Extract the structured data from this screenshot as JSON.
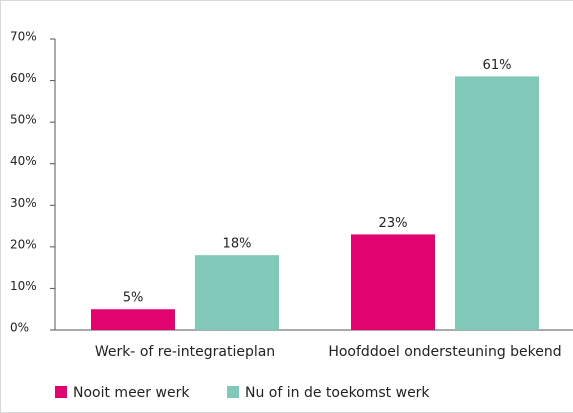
{
  "chart_data": {
    "type": "bar",
    "categories": [
      "Werk- of re-integratieplan",
      "Hoofddoel ondersteuning bekend"
    ],
    "series": [
      {
        "name": "Nooit meer werk",
        "color": "#e2046e",
        "values": [
          5,
          23
        ],
        "value_labels": [
          "5%",
          "23%"
        ]
      },
      {
        "name": "Nu of in de toekomst werk",
        "color": "#80c9b9",
        "values": [
          18,
          61
        ],
        "value_labels": [
          "18%",
          "61%"
        ]
      }
    ],
    "ylim": [
      0,
      70
    ],
    "yticks": [
      {
        "value": 0,
        "label": "0%"
      },
      {
        "value": 10,
        "label": "10%"
      },
      {
        "value": 20,
        "label": "20%"
      },
      {
        "value": 30,
        "label": "30%"
      },
      {
        "value": 40,
        "label": "40%"
      },
      {
        "value": 50,
        "label": "50%"
      },
      {
        "value": 60,
        "label": "60%"
      },
      {
        "value": 70,
        "label": "70%"
      }
    ],
    "legend": "bottom-left"
  }
}
